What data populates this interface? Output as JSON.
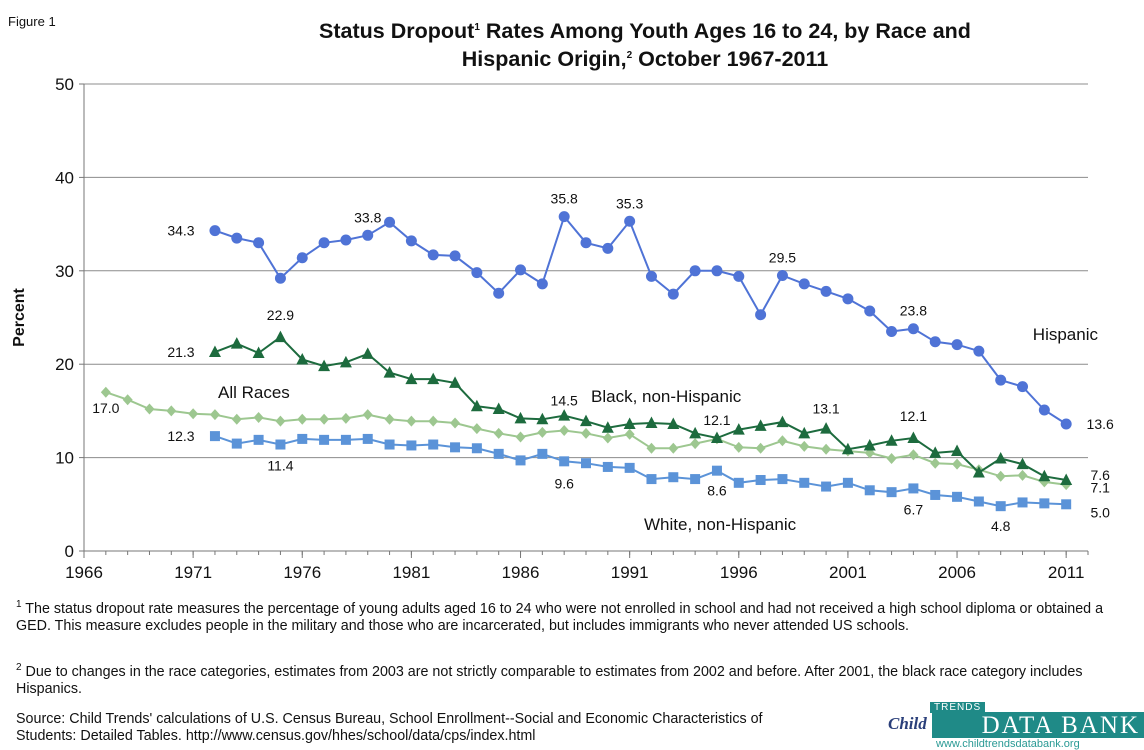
{
  "figure_label": "Figure 1",
  "title_part1": "Status Dropout",
  "title_sup1": "1",
  "title_part2": " Rates Among Youth Ages 16 to 24, by Race and",
  "title_part3": "Hispanic Origin,",
  "title_sup2": "2",
  "title_part4": " October 1967-2011",
  "footnote1_mark": "1",
  "footnote1_text": " The status dropout rate measures the percentage of young adults aged 16 to 24 who were not enrolled in school and had not received a high school diploma or obtained a GED.  This measure  excludes people in the military and those who are incarcerated, but includes immigrants who never attended US schools.",
  "footnote2_mark": "2",
  "footnote2_text": " Due to changes in the race categories, estimates from 2003 are not strictly comparable to estimates from 2002 and before.  After 2001, the black race category includes Hispanics.",
  "source_text": "Source:  Child Trends' calculations of U.S. Census Bureau, School Enrollment--Social and Economic Characteristics of Students: Detailed Tables.  http://www.census.gov/hhes/school/data/cps/index.html",
  "logo": {
    "child": "Child",
    "trends": "TRENDS",
    "databank": "DATA BANK",
    "url": "www.childtrendsdatabank.org"
  },
  "chart_data": {
    "type": "line",
    "title": "Status Dropout Rates Among Youth Ages 16 to 24, by Race and Hispanic Origin, October 1967-2011",
    "ylabel": "Percent",
    "xlabel": "",
    "xlim": [
      1966,
      2012
    ],
    "ylim": [
      0,
      50
    ],
    "x_ticks": [
      1966,
      1971,
      1976,
      1981,
      1986,
      1991,
      1996,
      2001,
      2006,
      2011
    ],
    "y_ticks": [
      0,
      10,
      20,
      30,
      40,
      50
    ],
    "grid": "horizontal",
    "series": [
      {
        "name": "Hispanic",
        "color": "#4f73d6",
        "marker": "circle",
        "x": [
          1972,
          1973,
          1974,
          1975,
          1976,
          1977,
          1978,
          1979,
          1980,
          1981,
          1982,
          1983,
          1984,
          1985,
          1986,
          1987,
          1988,
          1989,
          1990,
          1991,
          1992,
          1993,
          1994,
          1995,
          1996,
          1997,
          1998,
          1999,
          2000,
          2001,
          2002,
          2003,
          2004,
          2005,
          2006,
          2007,
          2008,
          2009,
          2010,
          2011
        ],
        "values": [
          34.3,
          33.5,
          33.0,
          29.2,
          31.4,
          33.0,
          33.3,
          33.8,
          35.2,
          33.2,
          31.7,
          31.6,
          29.8,
          27.6,
          30.1,
          28.6,
          35.8,
          33.0,
          32.4,
          35.3,
          29.4,
          27.5,
          30.0,
          30.0,
          29.4,
          25.3,
          29.5,
          28.6,
          27.8,
          27.0,
          25.7,
          23.5,
          23.8,
          22.4,
          22.1,
          21.4,
          18.3,
          17.6,
          15.1,
          13.6
        ],
        "labels": [
          {
            "x": 1972,
            "text": "34.3"
          },
          {
            "x": 1979,
            "text": "33.8"
          },
          {
            "x": 1988,
            "text": "35.8"
          },
          {
            "x": 1991,
            "text": "35.3"
          },
          {
            "x": 1998,
            "text": "29.5"
          },
          {
            "x": 2004,
            "text": "23.8"
          },
          {
            "x": 2011,
            "text": "13.6"
          }
        ]
      },
      {
        "name": "Black, non-Hispanic",
        "color": "#1d6b3e",
        "marker": "triangle",
        "x": [
          1972,
          1973,
          1974,
          1975,
          1976,
          1977,
          1978,
          1979,
          1980,
          1981,
          1982,
          1983,
          1984,
          1985,
          1986,
          1987,
          1988,
          1989,
          1990,
          1991,
          1992,
          1993,
          1994,
          1995,
          1996,
          1997,
          1998,
          1999,
          2000,
          2001,
          2002,
          2003,
          2004,
          2005,
          2006,
          2007,
          2008,
          2009,
          2010,
          2011
        ],
        "values": [
          21.3,
          22.2,
          21.2,
          22.9,
          20.5,
          19.8,
          20.2,
          21.1,
          19.1,
          18.4,
          18.4,
          18.0,
          15.5,
          15.2,
          14.2,
          14.1,
          14.5,
          13.9,
          13.2,
          13.6,
          13.7,
          13.6,
          12.6,
          12.1,
          13.0,
          13.4,
          13.8,
          12.6,
          13.1,
          10.9,
          11.3,
          11.8,
          12.1,
          10.5,
          10.7,
          8.4,
          9.9,
          9.3,
          8.0,
          7.6
        ],
        "labels": [
          {
            "x": 1972,
            "text": "21.3"
          },
          {
            "x": 1975,
            "text": "22.9"
          },
          {
            "x": 1988,
            "text": "14.5"
          },
          {
            "x": 1995,
            "text": "12.1"
          },
          {
            "x": 2000,
            "text": "13.1"
          },
          {
            "x": 2004,
            "text": "12.1"
          },
          {
            "x": 2011,
            "text": "7.6"
          }
        ]
      },
      {
        "name": "All Races",
        "color": "#9dc790",
        "marker": "diamond",
        "x": [
          1967,
          1968,
          1969,
          1970,
          1971,
          1972,
          1973,
          1974,
          1975,
          1976,
          1977,
          1978,
          1979,
          1980,
          1981,
          1982,
          1983,
          1984,
          1985,
          1986,
          1987,
          1988,
          1989,
          1990,
          1991,
          1992,
          1993,
          1994,
          1995,
          1996,
          1997,
          1998,
          1999,
          2000,
          2001,
          2002,
          2003,
          2004,
          2005,
          2006,
          2007,
          2008,
          2009,
          2010,
          2011
        ],
        "values": [
          17.0,
          16.2,
          15.2,
          15.0,
          14.7,
          14.6,
          14.1,
          14.3,
          13.9,
          14.1,
          14.1,
          14.2,
          14.6,
          14.1,
          13.9,
          13.9,
          13.7,
          13.1,
          12.6,
          12.2,
          12.7,
          12.9,
          12.6,
          12.1,
          12.5,
          11.0,
          11.0,
          11.5,
          12.0,
          11.1,
          11.0,
          11.8,
          11.2,
          10.9,
          10.7,
          10.5,
          9.9,
          10.3,
          9.4,
          9.3,
          8.7,
          8.0,
          8.1,
          7.4,
          7.1
        ],
        "labels": [
          {
            "x": 1967,
            "text": "17.0"
          },
          {
            "x": 2011,
            "text": "7.1"
          }
        ]
      },
      {
        "name": "White, non-Hispanic",
        "color": "#5b93d8",
        "marker": "square",
        "x": [
          1972,
          1973,
          1974,
          1975,
          1976,
          1977,
          1978,
          1979,
          1980,
          1981,
          1982,
          1983,
          1984,
          1985,
          1986,
          1987,
          1988,
          1989,
          1990,
          1991,
          1992,
          1993,
          1994,
          1995,
          1996,
          1997,
          1998,
          1999,
          2000,
          2001,
          2002,
          2003,
          2004,
          2005,
          2006,
          2007,
          2008,
          2009,
          2010,
          2011
        ],
        "values": [
          12.3,
          11.5,
          11.9,
          11.4,
          12.0,
          11.9,
          11.9,
          12.0,
          11.4,
          11.3,
          11.4,
          11.1,
          11.0,
          10.4,
          9.7,
          10.4,
          9.6,
          9.4,
          9.0,
          8.9,
          7.7,
          7.9,
          7.7,
          8.6,
          7.3,
          7.6,
          7.7,
          7.3,
          6.9,
          7.3,
          6.5,
          6.3,
          6.7,
          6.0,
          5.8,
          5.3,
          4.8,
          5.2,
          5.1,
          5.0
        ],
        "labels": [
          {
            "x": 1972,
            "text": "12.3"
          },
          {
            "x": 1975,
            "text": "11.4"
          },
          {
            "x": 1988,
            "text": "9.6"
          },
          {
            "x": 1995,
            "text": "8.6"
          },
          {
            "x": 2004,
            "text": "6.7"
          },
          {
            "x": 2008,
            "text": "4.8"
          },
          {
            "x": 2011,
            "text": "5.0"
          }
        ]
      }
    ],
    "series_names": [
      "Hispanic",
      "Black, non-Hispanic",
      "All Races",
      "White, non-Hispanic"
    ]
  }
}
